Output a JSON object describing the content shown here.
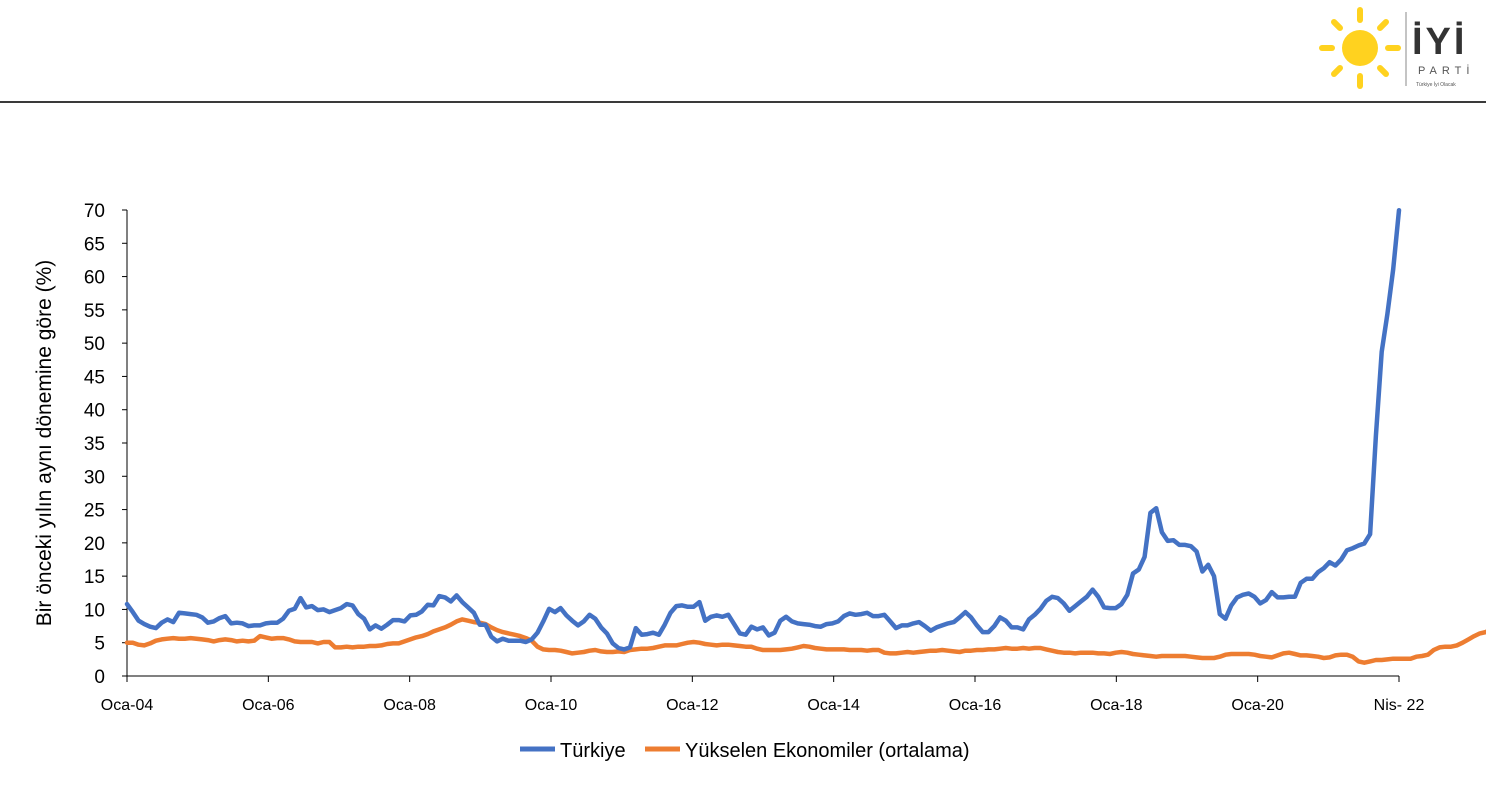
{
  "logo": {
    "wordmark": "İYİ",
    "sub": "PARTİ",
    "tagline": "Türkiye İyi Olacak"
  },
  "colors": {
    "turkiye": "#4472C4",
    "emerging": "#ED7D31",
    "sun": "#FFD21F",
    "rule": "#3a3a3a"
  },
  "chart_data": {
    "type": "line",
    "ylabel": "Bir önceki yılın aynı dönemine göre (%)",
    "xlabel": "",
    "ylim": [
      0,
      70
    ],
    "yticks": [
      0,
      5,
      10,
      15,
      20,
      25,
      30,
      35,
      40,
      45,
      50,
      55,
      60,
      65,
      70
    ],
    "xticks": [
      "Oca-04",
      "Oca-06",
      "Oca-08",
      "Oca-10",
      "Oca-12",
      "Oca-14",
      "Oca-16",
      "Oca-18",
      "Oca-20",
      "Nis- 22"
    ],
    "x_start": "Oca-04",
    "x_end": "Nis- 22",
    "legend_position": "bottom",
    "grid": false,
    "series": [
      {
        "name": "Türkiye",
        "values": [
          10.8,
          9.6,
          8.3,
          7.8,
          7.4,
          7.2,
          8.0,
          8.5,
          8.1,
          9.5,
          9.4,
          9.3,
          9.2,
          8.8,
          8.0,
          8.2,
          8.7,
          9.0,
          7.9,
          8.0,
          7.9,
          7.5,
          7.6,
          7.6,
          7.9,
          8.0,
          8.0,
          8.6,
          9.8,
          10.1,
          11.7,
          10.3,
          10.5,
          9.9,
          10.0,
          9.6,
          9.9,
          10.2,
          10.8,
          10.6,
          9.3,
          8.6,
          7.0,
          7.6,
          7.1,
          7.7,
          8.4,
          8.4,
          8.2,
          9.1,
          9.2,
          9.7,
          10.7,
          10.6,
          12.0,
          11.8,
          11.2,
          12.1,
          11.1,
          10.3,
          9.5,
          7.7,
          7.7,
          5.9,
          5.2,
          5.6,
          5.3,
          5.3,
          5.3,
          5.1,
          5.5,
          6.5,
          8.2,
          10.1,
          9.6,
          10.2,
          9.1,
          8.3,
          7.6,
          8.2,
          9.2,
          8.6,
          7.3,
          6.4,
          4.9,
          4.2,
          4.0,
          4.3,
          7.2,
          6.2,
          6.3,
          6.5,
          6.2,
          7.7,
          9.5,
          10.5,
          10.6,
          10.4,
          10.4,
          11.1,
          8.3,
          8.9,
          9.1,
          8.9,
          9.2,
          7.8,
          6.4,
          6.2,
          7.4,
          7.0,
          7.3,
          6.1,
          6.5,
          8.3,
          8.9,
          8.2,
          7.9,
          7.8,
          7.7,
          7.5,
          7.4,
          7.8,
          7.9,
          8.2,
          9.0,
          9.4,
          9.2,
          9.3,
          9.5,
          9.0,
          9.0,
          9.2,
          8.2,
          7.2,
          7.6,
          7.6,
          7.9,
          8.1,
          7.5,
          6.8,
          7.3,
          7.6,
          7.9,
          8.1,
          8.8,
          9.6,
          8.8,
          7.6,
          6.6,
          6.6,
          7.5,
          8.8,
          8.3,
          7.3,
          7.3,
          7.0,
          8.5,
          9.2,
          10.1,
          11.3,
          11.9,
          11.7,
          10.9,
          9.8,
          10.5,
          11.2,
          11.9,
          12.98,
          11.9,
          10.3,
          10.2,
          10.2,
          10.8,
          12.2,
          15.4,
          16.0,
          17.9,
          24.5,
          25.2,
          21.6,
          20.3,
          20.4,
          19.7,
          19.7,
          19.5,
          18.7,
          15.7,
          16.7,
          15.0,
          9.3,
          8.6,
          10.6,
          11.8,
          12.2,
          12.4,
          11.9,
          10.9,
          11.4,
          12.6,
          11.8,
          11.8,
          11.9,
          11.9,
          14.0,
          14.6,
          14.6,
          15.6,
          16.2,
          17.1,
          16.6,
          17.5,
          18.9,
          19.2,
          19.6,
          19.9,
          21.3,
          36.1,
          48.7,
          54.4,
          61.1,
          69.97
        ],
        "points_label": "monthly, Oca-04 .. Nis- 22"
      },
      {
        "name": "Yükselen Ekonomiler (ortalama)",
        "values": [
          5.0,
          5.0,
          4.7,
          4.6,
          4.9,
          5.3,
          5.5,
          5.6,
          5.7,
          5.6,
          5.6,
          5.7,
          5.6,
          5.5,
          5.4,
          5.2,
          5.4,
          5.5,
          5.4,
          5.2,
          5.3,
          5.2,
          5.3,
          6.0,
          5.8,
          5.6,
          5.7,
          5.7,
          5.5,
          5.2,
          5.1,
          5.1,
          5.1,
          4.9,
          5.1,
          5.1,
          4.3,
          4.3,
          4.4,
          4.3,
          4.4,
          4.4,
          4.5,
          4.5,
          4.6,
          4.8,
          4.9,
          4.9,
          5.2,
          5.5,
          5.8,
          6.0,
          6.3,
          6.7,
          7.0,
          7.3,
          7.7,
          8.2,
          8.5,
          8.3,
          8.1,
          8.0,
          7.8,
          7.3,
          6.9,
          6.6,
          6.4,
          6.2,
          6.0,
          5.7,
          5.3,
          4.4,
          4.0,
          3.9,
          3.9,
          3.8,
          3.6,
          3.4,
          3.5,
          3.6,
          3.8,
          3.9,
          3.7,
          3.6,
          3.6,
          3.7,
          3.6,
          3.9,
          4.0,
          4.1,
          4.1,
          4.2,
          4.4,
          4.6,
          4.6,
          4.6,
          4.8,
          5.0,
          5.1,
          5.0,
          4.8,
          4.7,
          4.6,
          4.7,
          4.7,
          4.6,
          4.5,
          4.4,
          4.4,
          4.1,
          3.9,
          3.9,
          3.9,
          3.9,
          4.0,
          4.1,
          4.3,
          4.5,
          4.4,
          4.2,
          4.1,
          4.0,
          4.0,
          4.0,
          4.0,
          3.9,
          3.9,
          3.9,
          3.8,
          3.9,
          3.9,
          3.5,
          3.4,
          3.4,
          3.5,
          3.6,
          3.5,
          3.6,
          3.7,
          3.8,
          3.8,
          3.9,
          3.8,
          3.7,
          3.6,
          3.8,
          3.8,
          3.9,
          3.9,
          4.0,
          4.0,
          4.1,
          4.2,
          4.1,
          4.1,
          4.2,
          4.1,
          4.2,
          4.2,
          4.0,
          3.8,
          3.6,
          3.5,
          3.5,
          3.4,
          3.5,
          3.5,
          3.5,
          3.4,
          3.4,
          3.3,
          3.5,
          3.6,
          3.5,
          3.3,
          3.2,
          3.1,
          3.0,
          2.9,
          3.0,
          3.0,
          3.0,
          3.0,
          3.0,
          2.9,
          2.8,
          2.7,
          2.7,
          2.7,
          2.9,
          3.2,
          3.3,
          3.3,
          3.3,
          3.3,
          3.2,
          3.0,
          2.9,
          2.8,
          3.1,
          3.4,
          3.5,
          3.3,
          3.1,
          3.1,
          3.0,
          2.9,
          2.7,
          2.8,
          3.1,
          3.2,
          3.2,
          2.9,
          2.2,
          2.0,
          2.2,
          2.4,
          2.4,
          2.5,
          2.6,
          2.6,
          2.6,
          2.6,
          2.9,
          3.0,
          3.2,
          3.9,
          4.3,
          4.4,
          4.4,
          4.6,
          5.0,
          5.5,
          6.0,
          6.4,
          6.6,
          7.1,
          8.6,
          8.6
        ]
      }
    ]
  }
}
